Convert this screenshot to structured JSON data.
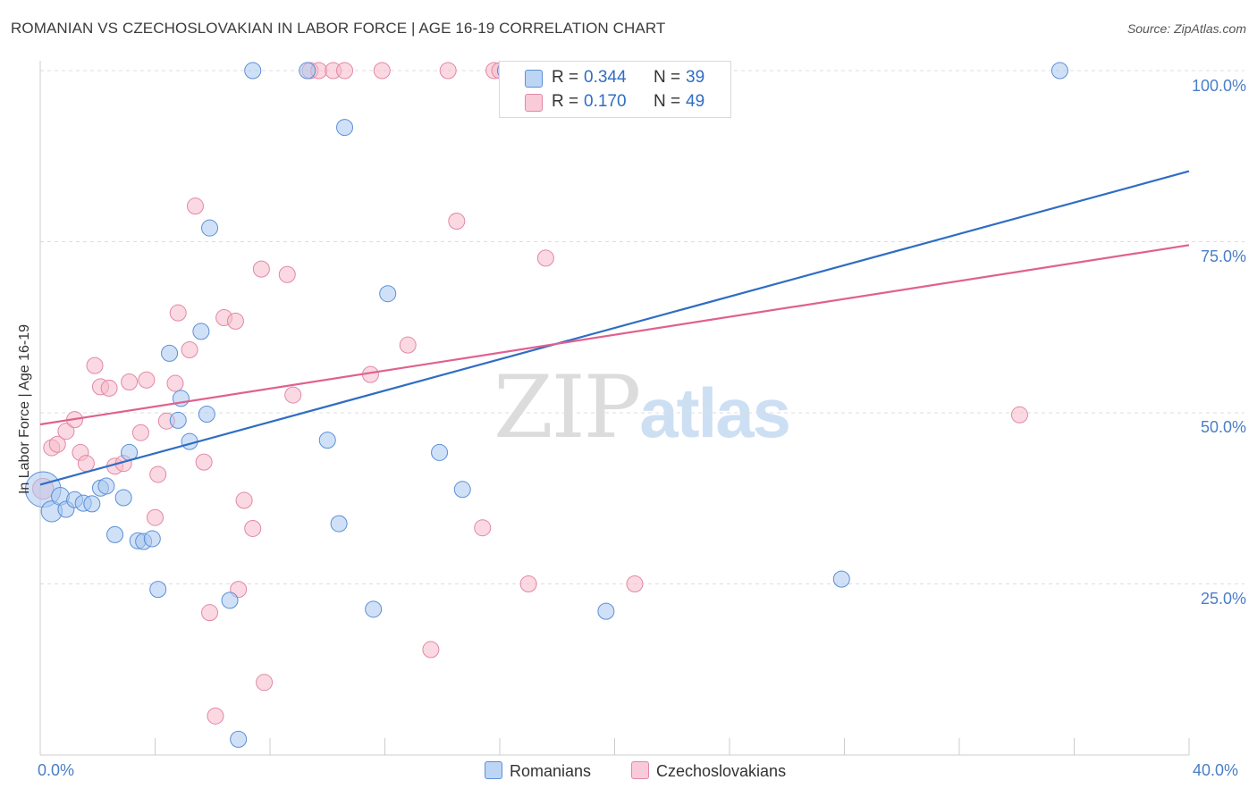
{
  "title": "ROMANIAN VS CZECHOSLOVAKIAN IN LABOR FORCE | AGE 16-19 CORRELATION CHART",
  "source": "Source: ZipAtlas.com",
  "watermark": {
    "zip": "ZIP",
    "atlas": "atlas"
  },
  "colors": {
    "blue_fill": "#a9c8f0",
    "blue_stroke": "#5b8fd6",
    "blue_line": "#2f6dc4",
    "pink_fill": "#f6b9cb",
    "pink_stroke": "#e387a6",
    "pink_line": "#e0618f",
    "grid": "#dddddd",
    "axis_text": "#4a7ec7"
  },
  "legend": {
    "rows": [
      {
        "r_label": "R =",
        "r_value": "0.344",
        "n_label": "N =",
        "n_value": "39"
      },
      {
        "r_label": "R =",
        "r_value": "0.170",
        "n_label": "N =",
        "n_value": "49"
      }
    ]
  },
  "bottom_legend": {
    "blue": "Romanians",
    "pink": "Czechoslovakians"
  },
  "chart_data": {
    "type": "scatter",
    "title": "ROMANIAN VS CZECHOSLOVAKIAN IN LABOR FORCE | AGE 16-19 CORRELATION CHART",
    "xlabel": "",
    "ylabel": "In Labor Force | Age 16-19",
    "xlim": [
      0,
      40
    ],
    "ylim": [
      0,
      100
    ],
    "x_tick_labels": [
      "0.0%",
      "40.0%"
    ],
    "y_ticks": [
      25,
      50,
      75,
      100
    ],
    "y_tick_labels": [
      "25.0%",
      "50.0%",
      "75.0%",
      "100.0%"
    ],
    "grid": true,
    "series": [
      {
        "name": "Romanians",
        "color": "blue",
        "R": 0.344,
        "N": 39,
        "trend": [
          [
            0,
            39.5
          ],
          [
            40,
            85.3
          ]
        ],
        "points": [
          [
            0.1,
            38.8,
            2.2
          ],
          [
            0.4,
            35.6,
            1.3
          ],
          [
            0.7,
            37.8,
            1.1
          ],
          [
            0.9,
            35.9,
            1
          ],
          [
            1.2,
            37.3,
            1
          ],
          [
            1.5,
            36.8,
            1
          ],
          [
            1.8,
            36.7,
            1
          ],
          [
            2.1,
            39.0,
            1
          ],
          [
            2.3,
            39.3,
            1
          ],
          [
            2.6,
            32.2,
            1
          ],
          [
            2.9,
            37.6,
            1
          ],
          [
            3.1,
            44.2,
            1
          ],
          [
            3.4,
            31.3,
            1
          ],
          [
            3.6,
            31.2,
            1
          ],
          [
            3.9,
            31.6,
            1
          ],
          [
            4.1,
            24.2,
            1
          ],
          [
            4.5,
            58.7,
            1
          ],
          [
            4.8,
            48.9,
            1
          ],
          [
            4.9,
            52.1,
            1
          ],
          [
            5.2,
            45.8,
            1
          ],
          [
            5.6,
            61.9,
            1
          ],
          [
            5.8,
            49.8,
            1
          ],
          [
            5.9,
            77.0,
            1
          ],
          [
            6.6,
            22.6,
            1
          ],
          [
            6.9,
            2.3,
            1
          ],
          [
            7.4,
            100,
            1
          ],
          [
            9.3,
            100,
            1
          ],
          [
            10.0,
            46.0,
            1
          ],
          [
            10.4,
            33.8,
            1
          ],
          [
            10.6,
            91.7,
            1
          ],
          [
            11.6,
            21.3,
            1
          ],
          [
            12.1,
            67.4,
            1
          ],
          [
            13.9,
            44.2,
            1
          ],
          [
            14.7,
            38.8,
            1
          ],
          [
            16.2,
            100,
            1
          ],
          [
            19.7,
            21.0,
            1
          ],
          [
            27.9,
            25.7,
            1
          ],
          [
            35.5,
            100,
            1
          ]
        ]
      },
      {
        "name": "Czechoslovakians",
        "color": "pink",
        "R": 0.17,
        "N": 49,
        "trend": [
          [
            0,
            48.3
          ],
          [
            40,
            74.5
          ]
        ],
        "points": [
          [
            0.1,
            38.9,
            1.3
          ],
          [
            0.4,
            44.9,
            1
          ],
          [
            0.6,
            45.4,
            1
          ],
          [
            0.9,
            47.3,
            1
          ],
          [
            1.2,
            49.0,
            1
          ],
          [
            1.4,
            44.2,
            1
          ],
          [
            1.6,
            42.6,
            1
          ],
          [
            1.9,
            56.9,
            1
          ],
          [
            2.1,
            53.8,
            1
          ],
          [
            2.4,
            53.6,
            1
          ],
          [
            2.6,
            42.2,
            1
          ],
          [
            2.9,
            42.6,
            1
          ],
          [
            3.1,
            54.5,
            1
          ],
          [
            3.5,
            47.1,
            1
          ],
          [
            3.7,
            54.8,
            1
          ],
          [
            4.0,
            34.7,
            1
          ],
          [
            4.1,
            41.0,
            1
          ],
          [
            4.4,
            48.8,
            1
          ],
          [
            4.7,
            54.3,
            1
          ],
          [
            4.8,
            64.6,
            1
          ],
          [
            5.2,
            59.2,
            1
          ],
          [
            5.4,
            80.2,
            1
          ],
          [
            5.7,
            42.8,
            1
          ],
          [
            5.9,
            20.8,
            1
          ],
          [
            6.1,
            5.7,
            1
          ],
          [
            6.4,
            63.9,
            1
          ],
          [
            6.8,
            63.4,
            1
          ],
          [
            6.9,
            24.2,
            1
          ],
          [
            7.1,
            37.2,
            1
          ],
          [
            7.4,
            33.1,
            1
          ],
          [
            7.7,
            71.0,
            1
          ],
          [
            7.8,
            10.6,
            1
          ],
          [
            8.6,
            70.2,
            1
          ],
          [
            8.8,
            52.6,
            1
          ],
          [
            9.4,
            100,
            1
          ],
          [
            9.7,
            100,
            1
          ],
          [
            10.2,
            100,
            1
          ],
          [
            10.6,
            100,
            1
          ],
          [
            11.5,
            55.6,
            1
          ],
          [
            11.9,
            100,
            1
          ],
          [
            12.8,
            59.9,
            1
          ],
          [
            13.6,
            15.4,
            1
          ],
          [
            14.2,
            100,
            1
          ],
          [
            14.5,
            78.0,
            1
          ],
          [
            15.4,
            33.2,
            1
          ],
          [
            15.8,
            100,
            1
          ],
          [
            16.0,
            100,
            1
          ],
          [
            17.0,
            25.0,
            1
          ],
          [
            17.6,
            72.6,
            1
          ],
          [
            20.7,
            25.0,
            1
          ],
          [
            34.1,
            49.7,
            1
          ]
        ]
      }
    ]
  }
}
